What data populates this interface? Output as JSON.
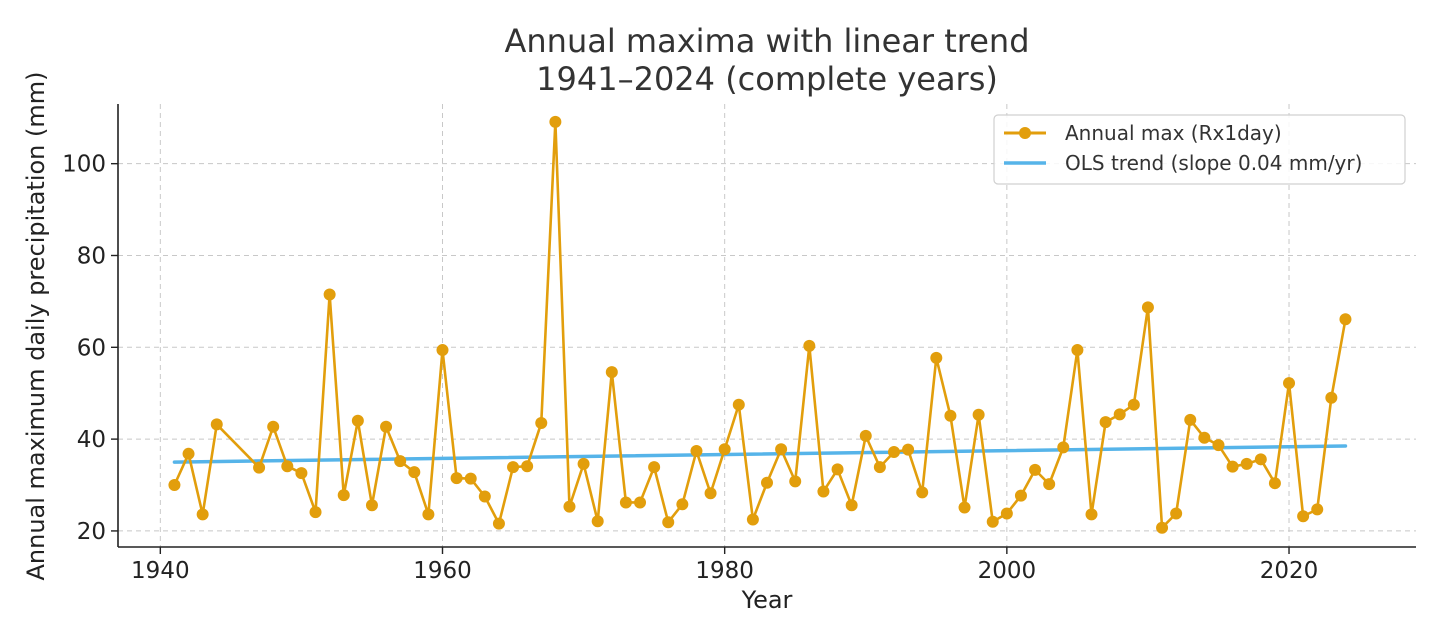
{
  "chart_data": {
    "type": "line",
    "title": "Annual maxima with linear trend",
    "subtitle": "1941–2024 (complete years)",
    "xlabel": "Year",
    "ylabel": "Annual maximum daily precipitation (mm)",
    "xlim": [
      1937,
      2029
    ],
    "ylim": [
      16.5,
      113
    ],
    "xticks": [
      1940,
      1960,
      1980,
      2000,
      2020
    ],
    "yticks": [
      20,
      40,
      60,
      80,
      100
    ],
    "grid": true,
    "legend_position": "top-right",
    "series": [
      {
        "name": "Annual max (Rx1day)",
        "color": "#E29E0C",
        "marker": "circle",
        "points": [
          [
            1941,
            30.0
          ],
          [
            1942,
            36.8
          ],
          [
            1943,
            23.6
          ],
          [
            1944,
            43.2
          ],
          [
            1947,
            33.8
          ],
          [
            1948,
            42.7
          ],
          [
            1949,
            34.1
          ],
          [
            1950,
            32.6
          ],
          [
            1951,
            24.1
          ],
          [
            1952,
            71.5
          ],
          [
            1953,
            27.8
          ],
          [
            1954,
            44.0
          ],
          [
            1955,
            25.6
          ],
          [
            1956,
            42.7
          ],
          [
            1957,
            35.2
          ],
          [
            1958,
            32.8
          ],
          [
            1959,
            23.6
          ],
          [
            1960,
            59.4
          ],
          [
            1961,
            31.5
          ],
          [
            1962,
            31.4
          ],
          [
            1963,
            27.5
          ],
          [
            1964,
            21.6
          ],
          [
            1965,
            33.9
          ],
          [
            1966,
            34.1
          ],
          [
            1967,
            43.5
          ],
          [
            1968,
            109.1
          ],
          [
            1969,
            25.3
          ],
          [
            1970,
            34.6
          ],
          [
            1971,
            22.1
          ],
          [
            1972,
            54.6
          ],
          [
            1973,
            26.2
          ],
          [
            1974,
            26.2
          ],
          [
            1975,
            33.9
          ],
          [
            1976,
            21.9
          ],
          [
            1977,
            25.8
          ],
          [
            1978,
            37.4
          ],
          [
            1979,
            28.2
          ],
          [
            1980,
            37.8
          ],
          [
            1981,
            47.5
          ],
          [
            1982,
            22.5
          ],
          [
            1983,
            30.5
          ],
          [
            1984,
            37.8
          ],
          [
            1985,
            30.8
          ],
          [
            1986,
            60.3
          ],
          [
            1987,
            28.6
          ],
          [
            1988,
            33.4
          ],
          [
            1989,
            25.6
          ],
          [
            1990,
            40.7
          ],
          [
            1991,
            33.9
          ],
          [
            1992,
            37.2
          ],
          [
            1993,
            37.7
          ],
          [
            1994,
            28.4
          ],
          [
            1995,
            57.7
          ],
          [
            1996,
            45.1
          ],
          [
            1997,
            25.1
          ],
          [
            1998,
            45.3
          ],
          [
            1999,
            22.0
          ],
          [
            2000,
            23.8
          ],
          [
            2001,
            27.7
          ],
          [
            2002,
            33.3
          ],
          [
            2003,
            30.2
          ],
          [
            2004,
            38.2
          ],
          [
            2005,
            59.4
          ],
          [
            2006,
            23.6
          ],
          [
            2007,
            43.7
          ],
          [
            2008,
            45.4
          ],
          [
            2009,
            47.5
          ],
          [
            2010,
            68.7
          ],
          [
            2011,
            20.7
          ],
          [
            2012,
            23.8
          ],
          [
            2013,
            44.2
          ],
          [
            2014,
            40.3
          ],
          [
            2015,
            38.7
          ],
          [
            2016,
            34.0
          ],
          [
            2017,
            34.6
          ],
          [
            2018,
            35.6
          ],
          [
            2019,
            30.4
          ],
          [
            2020,
            52.2
          ],
          [
            2021,
            23.2
          ],
          [
            2022,
            24.7
          ],
          [
            2023,
            49.0
          ],
          [
            2024,
            66.1
          ]
        ]
      },
      {
        "name": "OLS trend (slope 0.04 mm/yr)",
        "color": "#56B4E9",
        "marker": "none",
        "points": [
          [
            1941,
            35.0
          ],
          [
            2024,
            38.5
          ]
        ]
      }
    ]
  }
}
